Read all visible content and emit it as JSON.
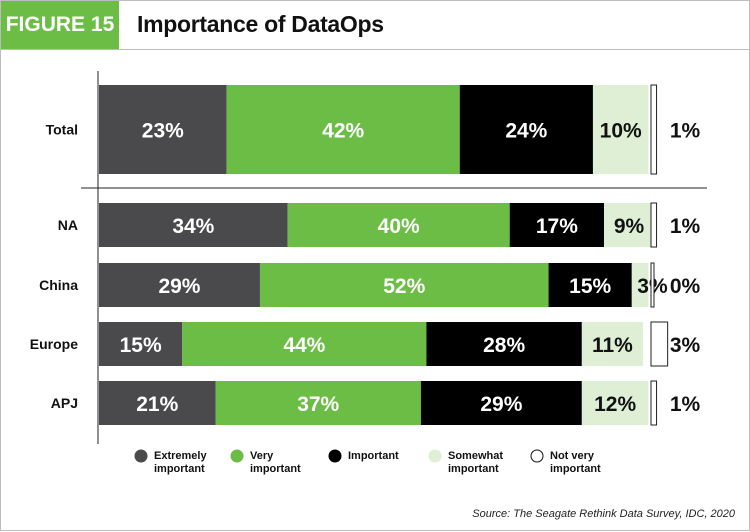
{
  "header": {
    "figure_label": "FIGURE 15",
    "title": "Importance of DataOps"
  },
  "source": "Source: The Seagate Rethink Data Survey, IDC, 2020",
  "colors": {
    "extremely": "#4a4a4c",
    "very": "#6cbd45",
    "important": "#000000",
    "somewhat": "#deefd6",
    "not_very": "#ffffff"
  },
  "chart_data": {
    "type": "bar",
    "orientation": "horizontal",
    "stacked": true,
    "title": "Importance of DataOps",
    "categories": [
      "Total",
      "NA",
      "China",
      "Europe",
      "APJ"
    ],
    "series": [
      {
        "name": "Extremely important",
        "key": "extremely",
        "values": [
          23,
          34,
          29,
          15,
          21
        ]
      },
      {
        "name": "Very important",
        "key": "very",
        "values": [
          42,
          40,
          52,
          44,
          37
        ]
      },
      {
        "name": "Important",
        "key": "important",
        "values": [
          24,
          17,
          15,
          28,
          29
        ]
      },
      {
        "name": "Somewhat important",
        "key": "somewhat",
        "values": [
          10,
          9,
          3,
          11,
          12
        ]
      },
      {
        "name": "Not very important",
        "key": "not_very",
        "values": [
          1,
          1,
          0,
          3,
          1
        ]
      }
    ],
    "legend": [
      {
        "key": "extremely",
        "line1": "Extremely",
        "line2": "important"
      },
      {
        "key": "very",
        "line1": "Very",
        "line2": "important"
      },
      {
        "key": "important",
        "line1": "Important",
        "line2": ""
      },
      {
        "key": "somewhat",
        "line1": "Somewhat",
        "line2": "important"
      },
      {
        "key": "not_very",
        "line1": "Not very",
        "line2": "important"
      }
    ],
    "xlim": [
      0,
      100
    ],
    "value_suffix": "%"
  }
}
